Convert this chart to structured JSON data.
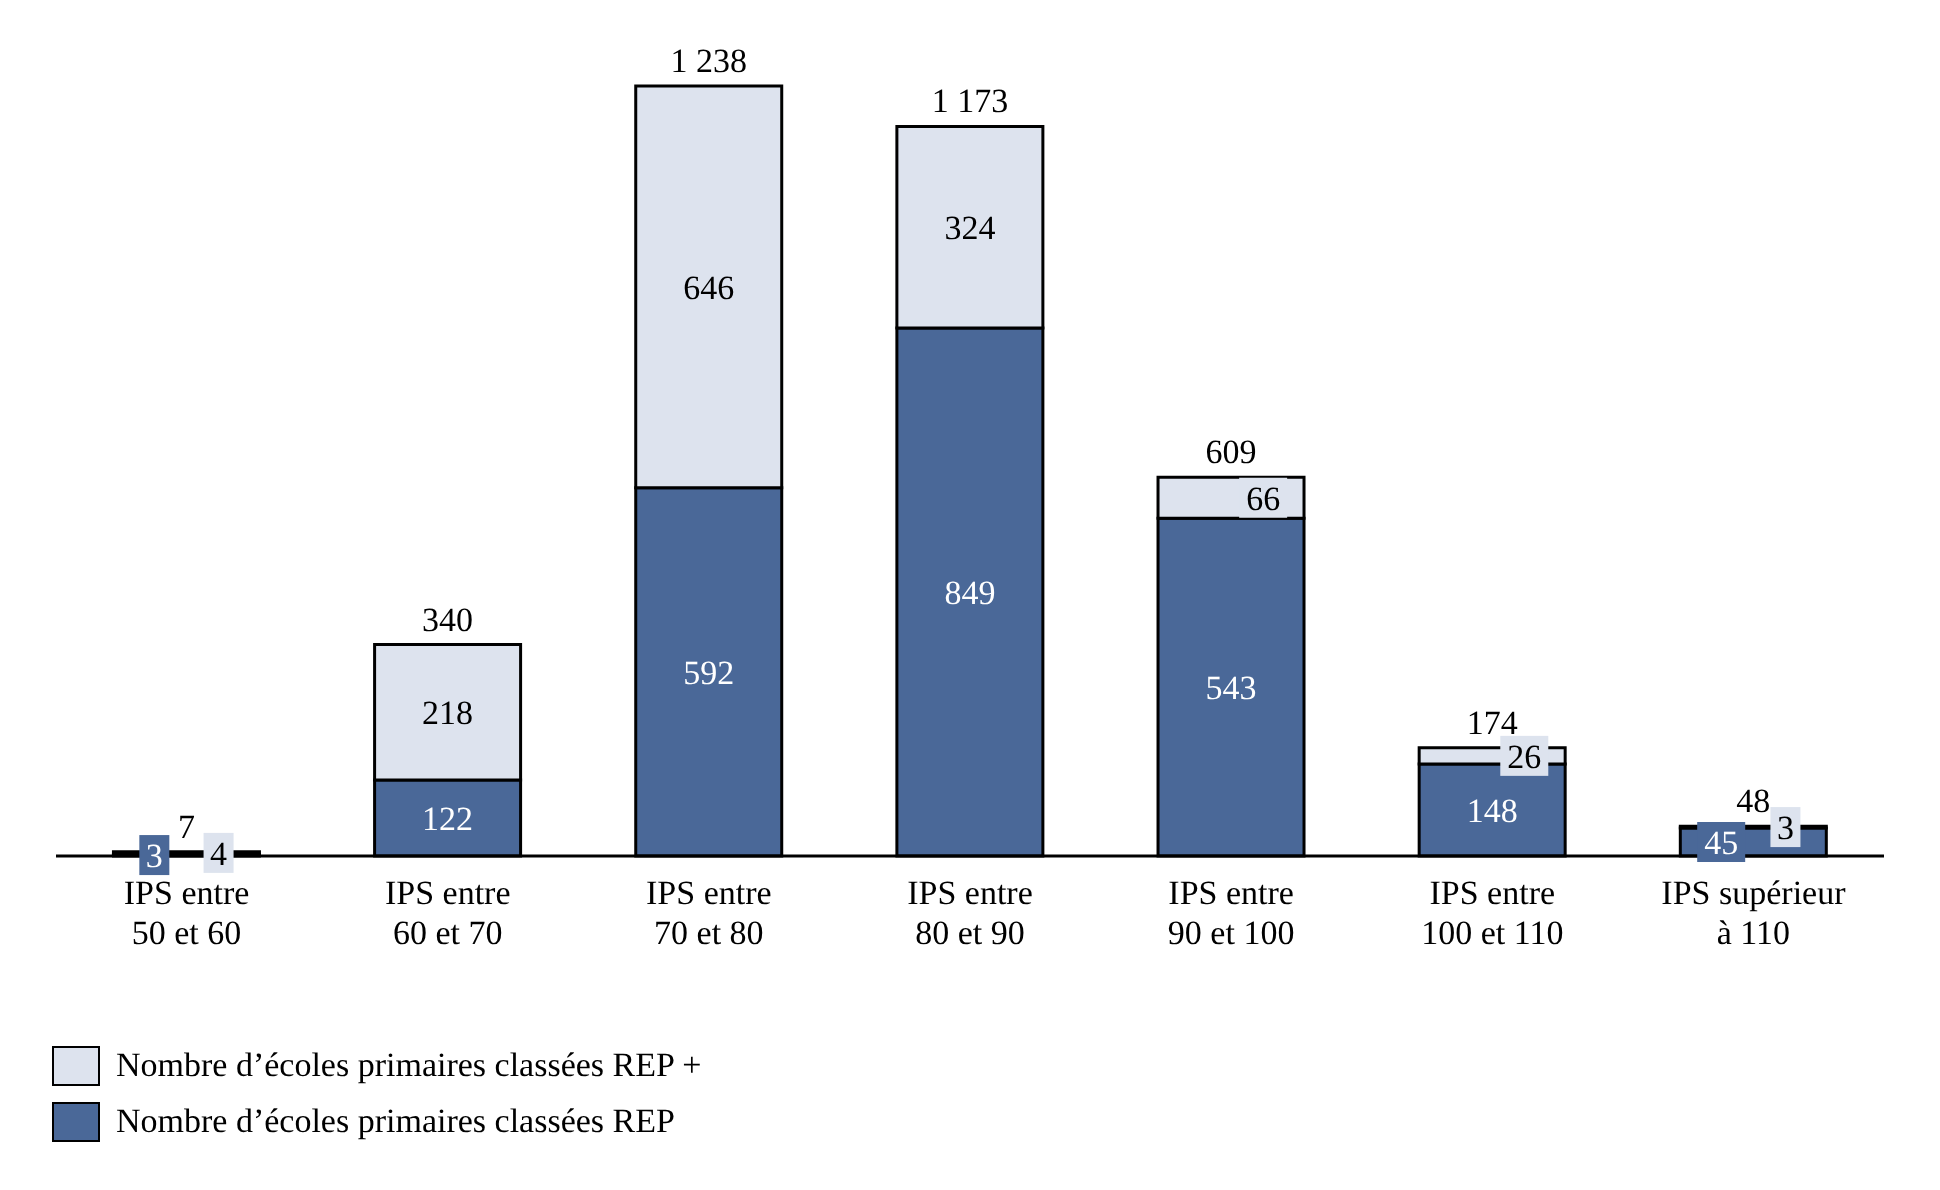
{
  "chart_data": {
    "type": "bar",
    "stacked": true,
    "data_labels": true,
    "legend": "bottom left",
    "categories": [
      "IPS entre 50 et 60",
      "IPS entre 60 et 70",
      "IPS entre 70 et 80",
      "IPS entre 80 et 90",
      "IPS entre 90 et 100",
      "IPS entre 100 et 110",
      "IPS supérieur à 110"
    ],
    "series": [
      {
        "name": "Nombre d’écoles primaires classées REP",
        "color": "#4a6898",
        "values": [
          3,
          122,
          592,
          849,
          543,
          148,
          45
        ]
      },
      {
        "name": "Nombre d’écoles primaires classées REP +",
        "color": "#dde3ee",
        "values": [
          4,
          218,
          646,
          324,
          66,
          26,
          3
        ]
      }
    ],
    "totals": [
      "7",
      "340",
      "1 238",
      "1 173",
      "609",
      "174",
      "48"
    ]
  }
}
